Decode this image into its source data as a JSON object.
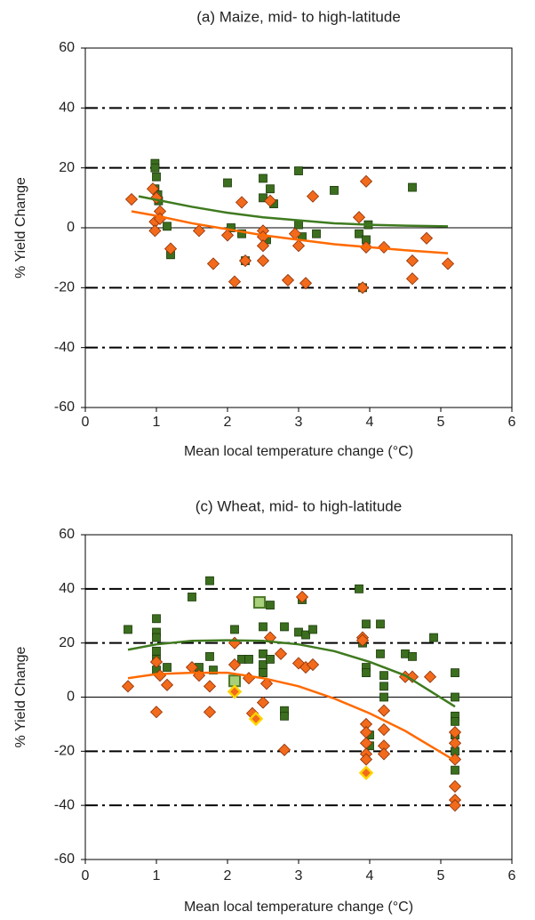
{
  "chart_data": [
    {
      "type": "scatter",
      "title": "(a) Maize, mid- to high-latitude",
      "xlabel": "Mean local temperature change (°C)",
      "ylabel": "% Yield Change",
      "xlim": [
        0,
        6
      ],
      "ylim": [
        -60,
        60
      ],
      "xticks": [
        0,
        1,
        2,
        3,
        4,
        5,
        6
      ],
      "yticks": [
        -60,
        -40,
        -20,
        0,
        20,
        40,
        60
      ],
      "grid": "dash-dot",
      "zero_line": true,
      "series": [
        {
          "marker": "square",
          "color": "#3b6e1e",
          "edge": "#1c3a0c",
          "x": [
            0.98,
            0.98,
            1.0,
            0.98,
            1.02,
            1.03,
            1.15,
            1.2,
            2.0,
            2.05,
            2.2,
            2.25,
            2.5,
            2.5,
            2.55,
            2.6,
            2.65,
            3.0,
            3.0,
            3.05,
            3.25,
            3.5,
            3.85,
            3.9,
            3.95,
            3.98,
            4.6
          ],
          "values": [
            21.5,
            20,
            17,
            13,
            11,
            9,
            0.5,
            -9,
            15,
            0,
            -2,
            -11,
            16.5,
            10,
            -4,
            13,
            8,
            19,
            1,
            -3,
            -2,
            12.5,
            -2,
            -20,
            -4,
            1,
            13.5
          ]
        },
        {
          "marker": "diamond",
          "color": "#f26a1b",
          "edge": "#8a3008",
          "x": [
            0.65,
            0.95,
            0.98,
            0.98,
            1.0,
            1.05,
            1.05,
            1.2,
            1.6,
            1.8,
            2.0,
            2.1,
            2.2,
            2.25,
            2.5,
            2.5,
            2.5,
            2.5,
            2.6,
            2.85,
            2.95,
            3.0,
            3.1,
            3.2,
            3.85,
            3.9,
            3.95,
            3.95,
            4.2,
            4.6,
            4.6,
            4.8,
            5.1
          ],
          "values": [
            9.5,
            13,
            2,
            -1,
            10,
            5.5,
            3,
            -7,
            -1,
            -12,
            -2.5,
            -18,
            8.5,
            -11,
            -1,
            -3,
            -6,
            -11,
            9,
            -17.5,
            -2,
            -6,
            -18.5,
            10.5,
            3.5,
            -20,
            -6.5,
            15.5,
            -6.5,
            -11,
            -17,
            -3.5,
            -12
          ]
        },
        {
          "marker": "line",
          "color": "#3f7a1f",
          "x": [
            0.75,
            1.5,
            2,
            2.5,
            3,
            3.5,
            4,
            4.5,
            5.1
          ],
          "values": [
            10.5,
            7,
            5,
            3.5,
            2.5,
            1.5,
            1,
            0.7,
            0.5
          ]
        },
        {
          "marker": "line",
          "color": "#ff6a00",
          "x": [
            0.65,
            1,
            1.5,
            2,
            2.5,
            3,
            3.5,
            4,
            4.5,
            5.1
          ],
          "values": [
            5.5,
            4,
            1.5,
            -0.5,
            -2.5,
            -4,
            -5.5,
            -6.5,
            -7.5,
            -8.5
          ]
        }
      ]
    },
    {
      "type": "scatter",
      "title": "(c) Wheat, mid- to high-latitude",
      "xlabel": "Mean local temperature change (°C)",
      "ylabel": "% Yield Change",
      "xlim": [
        0,
        6
      ],
      "ylim": [
        -60,
        60
      ],
      "xticks": [
        0,
        1,
        2,
        3,
        4,
        5,
        6
      ],
      "yticks": [
        -60,
        -40,
        -20,
        0,
        20,
        40,
        60
      ],
      "grid": "dash-dot",
      "zero_line": true,
      "series": [
        {
          "marker": "square",
          "color": "#3b6e1e",
          "edge": "#1c3a0c",
          "x": [
            0.6,
            1,
            1,
            1,
            1,
            1,
            1,
            1.15,
            1.5,
            1.6,
            1.75,
            1.75,
            1.8,
            2.1,
            2.2,
            2.3,
            2.5,
            2.5,
            2.5,
            2.5,
            2.6,
            2.6,
            2.8,
            2.8,
            2.8,
            3,
            3.05,
            3.1,
            3.2,
            3.85,
            3.9,
            3.95,
            3.95,
            3.95,
            4,
            4,
            4.15,
            4.15,
            4.2,
            4.2,
            4.2,
            4.5,
            4.6,
            4.9,
            5.2,
            5.2,
            5.2,
            5.2,
            5.2,
            5.2,
            5.2
          ],
          "values": [
            25,
            29,
            24,
            22,
            17,
            14,
            10,
            11,
            37,
            11,
            43,
            15,
            10,
            25,
            14,
            14,
            26,
            16,
            12,
            9,
            34,
            14,
            26,
            -5,
            -7,
            24,
            36,
            23,
            25,
            40,
            20,
            27,
            11,
            9,
            -14,
            -18,
            27,
            16,
            8,
            4,
            0,
            16,
            15,
            22,
            9,
            0,
            -7,
            -9,
            -14,
            -20,
            -27
          ]
        },
        {
          "marker": "diamond",
          "color": "#f26a1b",
          "edge": "#8a3008",
          "x": [
            0.6,
            1,
            1,
            1.05,
            1.15,
            1.5,
            1.6,
            1.75,
            1.75,
            2.1,
            2.1,
            2.3,
            2.35,
            2.5,
            2.55,
            2.6,
            2.75,
            2.8,
            3,
            3.05,
            3.1,
            3.2,
            3.9,
            3.9,
            3.95,
            3.95,
            3.95,
            3.95,
            3.95,
            4.2,
            4.2,
            4.2,
            4.2,
            4.5,
            4.6,
            4.85,
            5.2,
            5.2,
            5.2,
            5.2,
            5.2,
            5.2
          ],
          "values": [
            4,
            -5.5,
            13,
            8,
            4.5,
            11,
            8,
            -5.5,
            4,
            20,
            12,
            7,
            -6,
            -2,
            5,
            22,
            16,
            -19.5,
            12.5,
            37,
            11,
            12,
            22,
            21,
            -10,
            -13,
            -17,
            -21,
            -23,
            -5,
            -12,
            -18,
            -21,
            7.5,
            7.5,
            7.5,
            -13,
            -17,
            -23,
            -33,
            -38,
            -40
          ]
        },
        {
          "marker": "square",
          "color": "#a8d07a",
          "edge": "#4d7a2a",
          "x": [
            2.1,
            2.45
          ],
          "values": [
            6,
            35
          ]
        },
        {
          "marker": "diamond",
          "color": "#f26a1b",
          "edge": "#ffd400",
          "x": [
            2.1,
            2.4,
            3.95
          ],
          "values": [
            2,
            -8,
            -28
          ]
        },
        {
          "marker": "line",
          "color": "#3f7a1f",
          "x": [
            0.6,
            1,
            1.5,
            2,
            2.5,
            3,
            3.5,
            4,
            4.5,
            5.2
          ],
          "values": [
            17.5,
            19.5,
            20.8,
            21,
            20.8,
            19.5,
            17,
            13,
            8,
            -3.5
          ]
        },
        {
          "marker": "line",
          "color": "#ff6a00",
          "x": [
            0.6,
            1,
            1.5,
            2,
            2.5,
            3,
            3.5,
            4,
            4.5,
            5.2
          ],
          "values": [
            7,
            8.5,
            9,
            9,
            7,
            4,
            -0.5,
            -6,
            -12.5,
            -23.5
          ]
        }
      ]
    }
  ]
}
